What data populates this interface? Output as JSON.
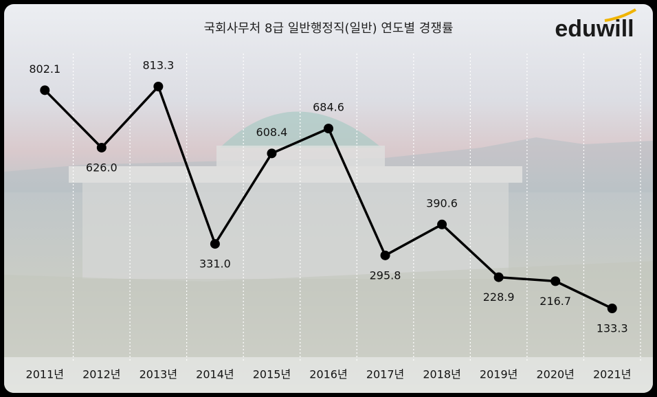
{
  "chart_data": {
    "type": "line",
    "title": "국회사무처 8급 일반행정직(일반) 연도별 경쟁률",
    "logo": "eduwill",
    "categories": [
      "2011년",
      "2012년",
      "2013년",
      "2014년",
      "2015년",
      "2016년",
      "2017년",
      "2018년",
      "2019년",
      "2020년",
      "2021년"
    ],
    "values": [
      802.1,
      626.0,
      813.3,
      331.0,
      608.4,
      684.6,
      295.8,
      390.6,
      228.9,
      216.7,
      133.3
    ],
    "value_labels": [
      "802.1",
      "626.0",
      "813.3",
      "331.0",
      "608.4",
      "684.6",
      "295.8",
      "390.6",
      "228.9",
      "216.7",
      "133.3"
    ],
    "color": "#000000",
    "grid": true
  }
}
